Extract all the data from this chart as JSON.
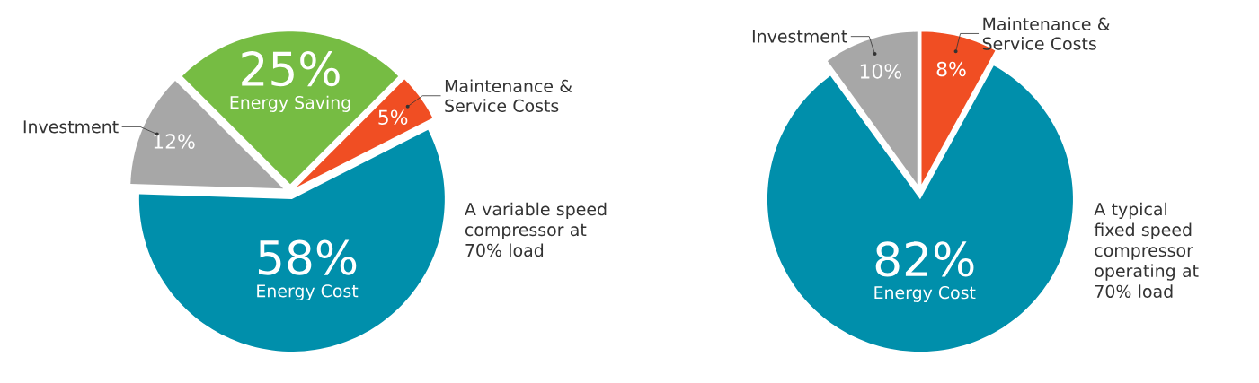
{
  "chart_data": [
    {
      "type": "pie",
      "categories": [
        "Energy Saving",
        "Maintenance & Service Costs",
        "Energy Cost",
        "Investment"
      ],
      "values": [
        25,
        5,
        58,
        12
      ],
      "value_labels": [
        "25%",
        "5%",
        "58%",
        "12%"
      ],
      "colors": [
        "#76bc43",
        "#f04e23",
        "#008fab",
        "#a7a7a7"
      ],
      "annotations": [
        "A variable speed compressor at 70% load"
      ]
    },
    {
      "type": "pie",
      "categories": [
        "Investment",
        "Maintenance & Service Costs",
        "Energy Cost"
      ],
      "values": [
        10,
        8,
        82
      ],
      "value_labels": [
        "10%",
        "8%",
        "82%"
      ],
      "colors": [
        "#a7a7a7",
        "#f04e23",
        "#008fab"
      ],
      "annotations": [
        "A typical fixed speed compressor operating at 70% load"
      ]
    }
  ]
}
